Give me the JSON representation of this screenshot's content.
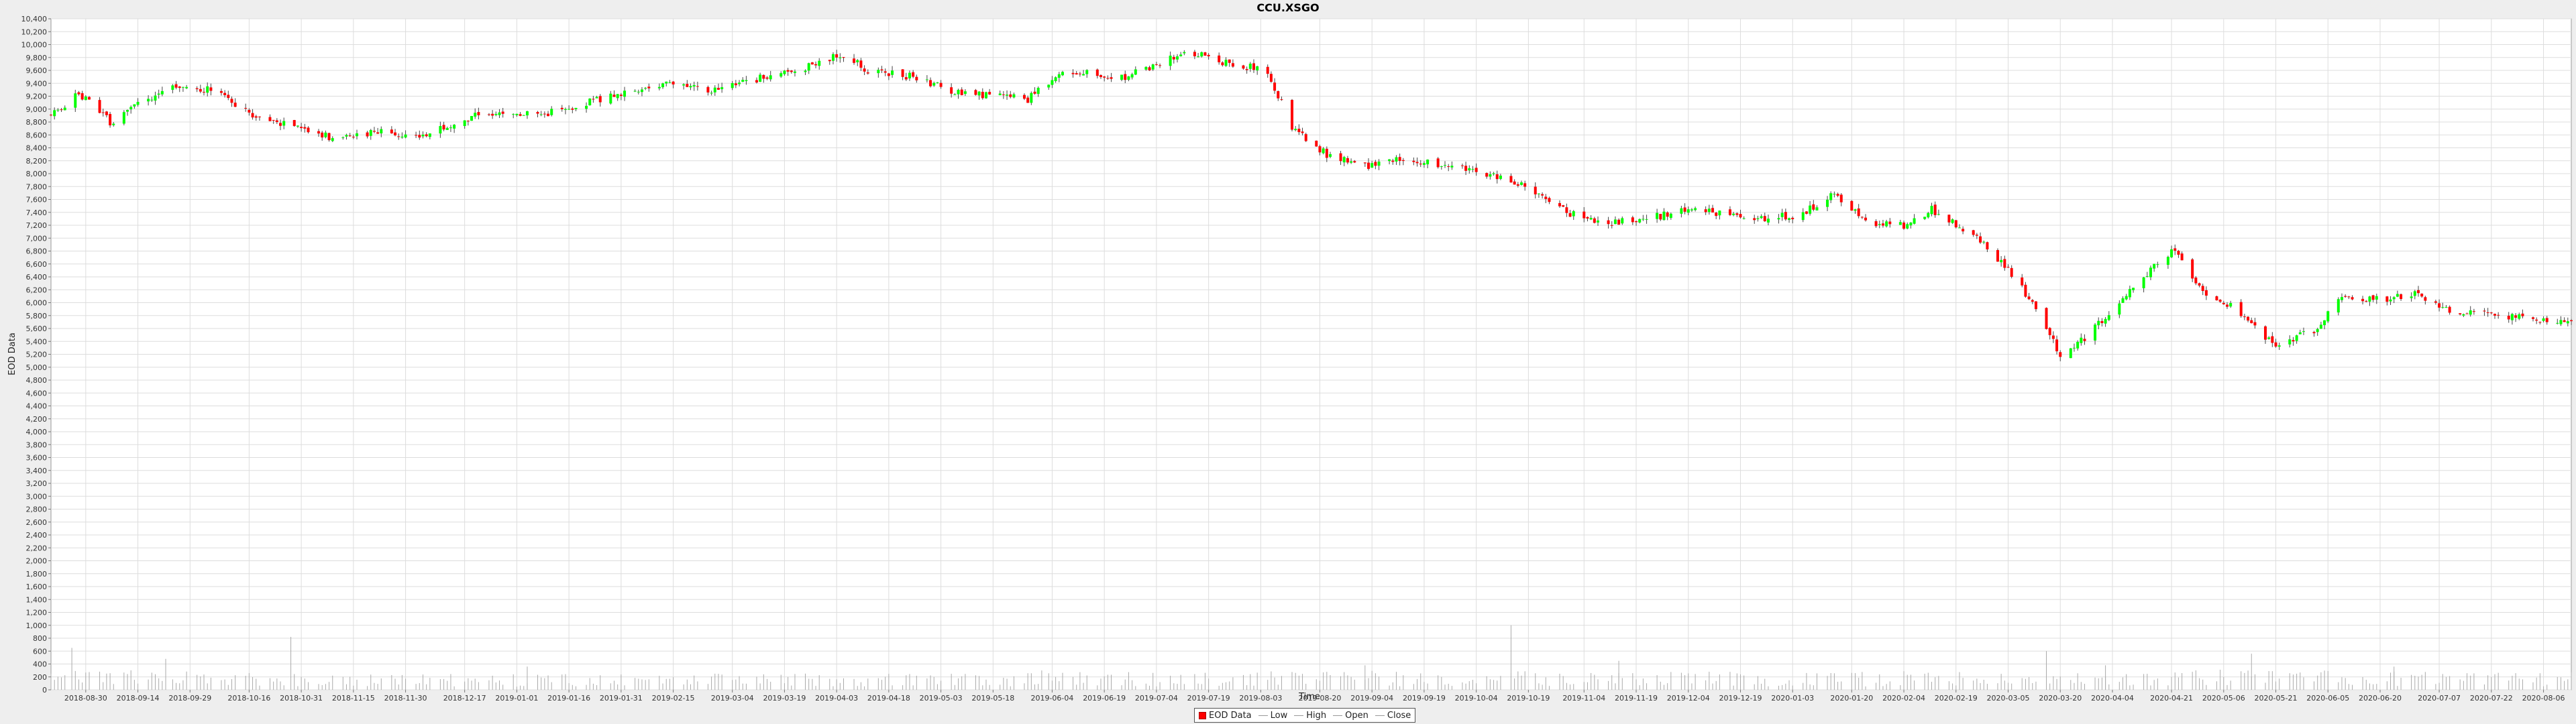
{
  "chart_data": {
    "type": "candlestick",
    "title": "CCU.XSGO",
    "xlabel": "Time",
    "ylabel": "EOD Data",
    "ylim": [
      0,
      10400
    ],
    "y_ticks": [
      0,
      200,
      400,
      600,
      800,
      1000,
      1200,
      1400,
      1600,
      1800,
      2000,
      2200,
      2400,
      2600,
      2800,
      3000,
      3200,
      3400,
      3600,
      3800,
      4000,
      4200,
      4400,
      4600,
      4800,
      5000,
      5200,
      5400,
      5600,
      5800,
      6000,
      6200,
      6400,
      6600,
      6800,
      7000,
      7200,
      7400,
      7600,
      7800,
      8000,
      8200,
      8400,
      8600,
      8800,
      9000,
      9200,
      9400,
      9600,
      9800,
      10000,
      10200,
      10400
    ],
    "y_tick_labels": [
      "0",
      "200",
      "400",
      "600",
      "800",
      "1,000",
      "1,200",
      "1,400",
      "1,600",
      "1,800",
      "2,000",
      "2,200",
      "2,400",
      "2,600",
      "2,800",
      "3,000",
      "3,200",
      "3,400",
      "3,600",
      "3,800",
      "4,000",
      "4,200",
      "4,400",
      "4,600",
      "4,800",
      "5,000",
      "5,200",
      "5,400",
      "5,600",
      "5,800",
      "6,000",
      "6,200",
      "6,400",
      "6,600",
      "6,800",
      "7,000",
      "7,200",
      "7,400",
      "7,600",
      "7,800",
      "8,000",
      "8,200",
      "8,400",
      "8,600",
      "8,800",
      "9,000",
      "9,200",
      "9,400",
      "9,600",
      "9,800",
      "10,000",
      "10,200",
      "10,400"
    ],
    "x_range": [
      "2018-08-20",
      "2020-08-14"
    ],
    "x_ticks": [
      "2018-08-30",
      "2018-09-14",
      "2018-09-29",
      "2018-10-16",
      "2018-10-31",
      "2018-11-15",
      "2018-11-30",
      "2018-12-17",
      "2019-01-01",
      "2019-01-16",
      "2019-01-31",
      "2019-02-15",
      "2019-03-04",
      "2019-03-19",
      "2019-04-03",
      "2019-04-18",
      "2019-05-03",
      "2019-05-18",
      "2019-06-04",
      "2019-06-19",
      "2019-07-04",
      "2019-07-19",
      "2019-08-03",
      "2019-08-20",
      "2019-09-04",
      "2019-09-19",
      "2019-10-04",
      "2019-10-19",
      "2019-11-04",
      "2019-11-19",
      "2019-12-04",
      "2019-12-19",
      "2020-01-03",
      "2020-01-20",
      "2020-02-04",
      "2020-02-19",
      "2020-03-05",
      "2020-03-20",
      "2020-04-04",
      "2020-04-21",
      "2020-05-06",
      "2020-05-21",
      "2020-06-05",
      "2020-06-20",
      "2020-07-07",
      "2020-07-22",
      "2020-08-06"
    ],
    "grid": true,
    "legend_position": "bottom-center",
    "legend": [
      "EOD Data",
      "Low",
      "High",
      "Open",
      "Close"
    ],
    "colors": {
      "up": "#00ff00",
      "down": "#ff0000",
      "wick": "#444444",
      "volume": "#aaaaaa",
      "grid": "#dddddd"
    },
    "close_path": [
      [
        "2018-08-20",
        8900
      ],
      [
        "2018-08-28",
        9250
      ],
      [
        "2018-09-06",
        8800
      ],
      [
        "2018-09-18",
        9200
      ],
      [
        "2018-09-25",
        9350
      ],
      [
        "2018-10-05",
        9300
      ],
      [
        "2018-10-15",
        8950
      ],
      [
        "2018-10-30",
        8700
      ],
      [
        "2018-11-10",
        8550
      ],
      [
        "2018-11-25",
        8650
      ],
      [
        "2018-12-05",
        8600
      ],
      [
        "2018-12-20",
        8900
      ],
      [
        "2019-01-10",
        8950
      ],
      [
        "2019-01-25",
        9150
      ],
      [
        "2019-02-10",
        9400
      ],
      [
        "2019-02-25",
        9300
      ],
      [
        "2019-03-10",
        9450
      ],
      [
        "2019-03-25",
        9650
      ],
      [
        "2019-04-05",
        9850
      ],
      [
        "2019-04-12",
        9600
      ],
      [
        "2019-04-25",
        9500
      ],
      [
        "2019-05-05",
        9300
      ],
      [
        "2019-05-18",
        9200
      ],
      [
        "2019-05-28",
        9150
      ],
      [
        "2019-06-08",
        9600
      ],
      [
        "2019-06-25",
        9500
      ],
      [
        "2019-07-05",
        9700
      ],
      [
        "2019-07-12",
        9900
      ],
      [
        "2019-07-22",
        9750
      ],
      [
        "2019-08-05",
        9600
      ],
      [
        "2019-08-12",
        8700
      ],
      [
        "2019-08-22",
        8300
      ],
      [
        "2019-09-01",
        8100
      ],
      [
        "2019-09-12",
        8250
      ],
      [
        "2019-09-28",
        8100
      ],
      [
        "2019-10-10",
        7950
      ],
      [
        "2019-10-22",
        7700
      ],
      [
        "2019-10-30",
        7400
      ],
      [
        "2019-11-10",
        7250
      ],
      [
        "2019-11-22",
        7300
      ],
      [
        "2019-12-05",
        7450
      ],
      [
        "2019-12-20",
        7300
      ],
      [
        "2020-01-05",
        7350
      ],
      [
        "2020-01-15",
        7700
      ],
      [
        "2020-01-25",
        7200
      ],
      [
        "2020-02-05",
        7200
      ],
      [
        "2020-02-12",
        7450
      ],
      [
        "2020-02-25",
        7000
      ],
      [
        "2020-03-05",
        6500
      ],
      [
        "2020-03-12",
        6000
      ],
      [
        "2020-03-20",
        5200
      ],
      [
        "2020-03-28",
        5500
      ],
      [
        "2020-04-06",
        6000
      ],
      [
        "2020-04-15",
        6500
      ],
      [
        "2020-04-22",
        6850
      ],
      [
        "2020-05-01",
        6100
      ],
      [
        "2020-05-10",
        5900
      ],
      [
        "2020-05-20",
        5350
      ],
      [
        "2020-06-01",
        5550
      ],
      [
        "2020-06-08",
        6100
      ],
      [
        "2020-06-20",
        6050
      ],
      [
        "2020-07-01",
        6150
      ],
      [
        "2020-07-10",
        5850
      ],
      [
        "2020-07-25",
        5800
      ],
      [
        "2020-08-14",
        5700
      ]
    ],
    "volume_path": [
      [
        "2018-08-20",
        300
      ],
      [
        "2018-10-20",
        250
      ],
      [
        "2019-01-01",
        220
      ],
      [
        "2019-05-01",
        240
      ],
      [
        "2019-10-01",
        280
      ],
      [
        "2020-01-01",
        250
      ],
      [
        "2020-04-01",
        300
      ],
      [
        "2020-08-14",
        250
      ]
    ],
    "volume_spikes": [
      [
        "2018-08-26",
        650
      ],
      [
        "2018-09-22",
        480
      ],
      [
        "2018-10-28",
        820
      ],
      [
        "2019-01-04",
        360
      ],
      [
        "2019-06-01",
        300
      ],
      [
        "2019-09-02",
        380
      ],
      [
        "2019-10-14",
        1000
      ],
      [
        "2019-11-14",
        450
      ],
      [
        "2020-03-16",
        600
      ],
      [
        "2020-04-02",
        380
      ],
      [
        "2020-05-14",
        560
      ],
      [
        "2020-06-24",
        360
      ]
    ]
  }
}
